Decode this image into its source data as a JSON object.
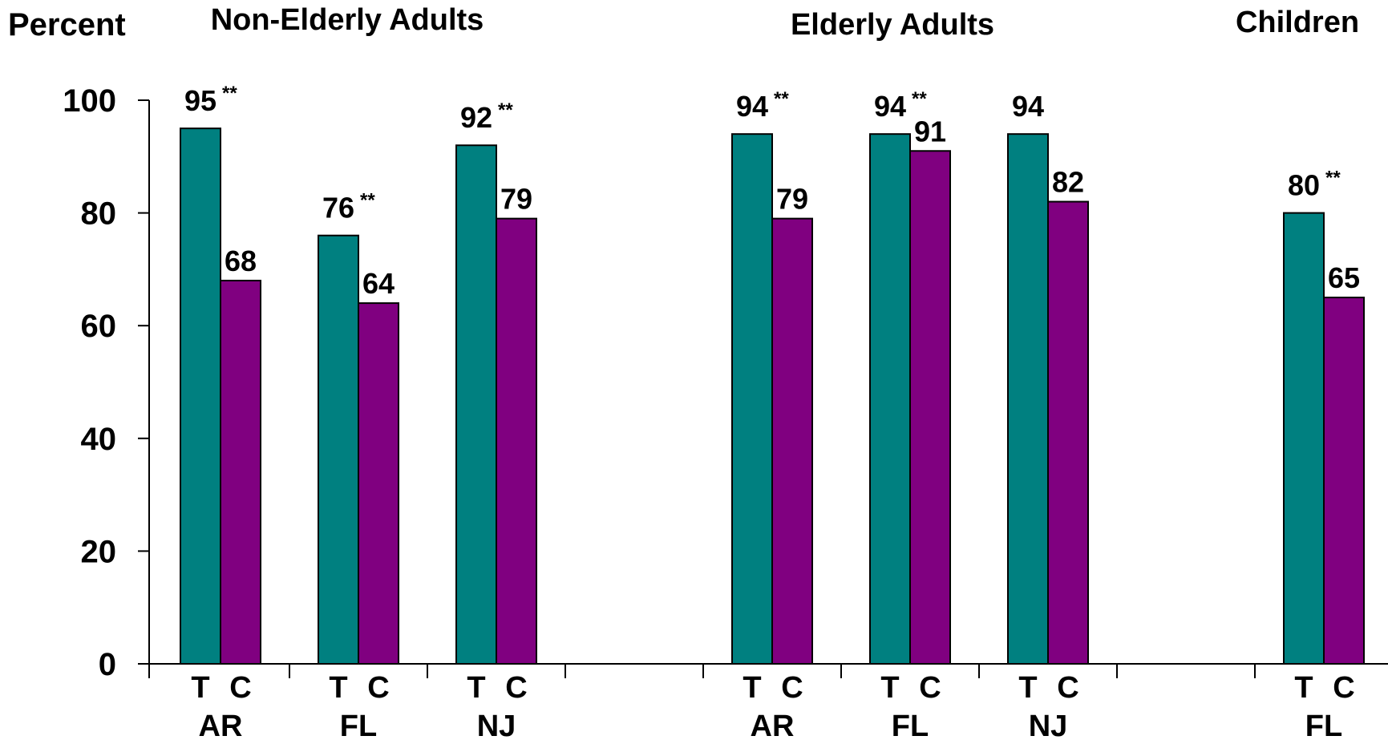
{
  "chart_data": {
    "type": "bar",
    "ylabel": "Percent",
    "ylim": [
      0,
      100
    ],
    "yticks": [
      0,
      20,
      40,
      60,
      80,
      100
    ],
    "series_keys": [
      "T",
      "C"
    ],
    "colors": {
      "T": "#008080",
      "C": "#800080"
    },
    "significance_marker": "**",
    "groups": [
      {
        "title": "Non-Elderly Adults",
        "states": [
          {
            "state": "AR",
            "T": 95,
            "C": 68,
            "sig": true
          },
          {
            "state": "FL",
            "T": 76,
            "C": 64,
            "sig": true
          },
          {
            "state": "NJ",
            "T": 92,
            "C": 79,
            "sig": true
          }
        ]
      },
      {
        "title": "Elderly Adults",
        "states": [
          {
            "state": "AR",
            "T": 94,
            "C": 79,
            "sig": true
          },
          {
            "state": "FL",
            "T": 94,
            "C": 91,
            "sig": true
          },
          {
            "state": "NJ",
            "T": 94,
            "C": 82,
            "sig": false
          }
        ]
      },
      {
        "title": "Children",
        "states": [
          {
            "state": "FL",
            "T": 80,
            "C": 65,
            "sig": true
          }
        ]
      }
    ]
  }
}
